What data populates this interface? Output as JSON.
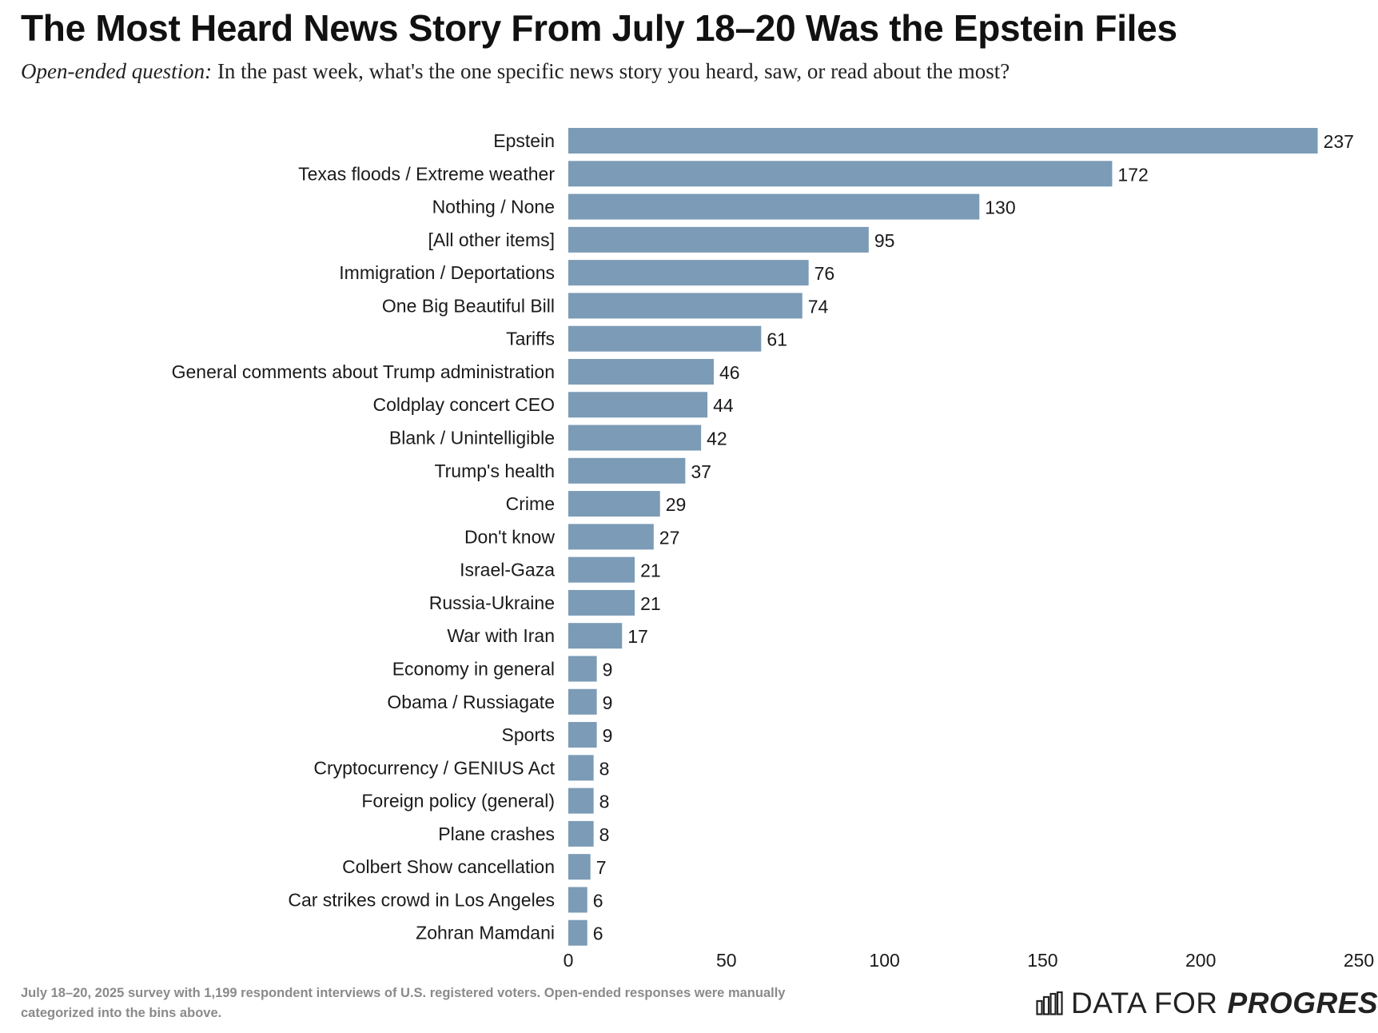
{
  "header": {
    "title": "The Most Heard News Story From July 18–20 Was the Epstein Files",
    "subtitle_lead": "Open-ended question:",
    "subtitle_text": " In the past week, what's the one specific news story you heard, saw, or read about the most?"
  },
  "chart_data": {
    "type": "bar",
    "orientation": "horizontal",
    "categories": [
      "Epstein",
      "Texas floods / Extreme weather",
      "Nothing / None",
      "[All other items]",
      "Immigration / Deportations",
      "One Big Beautiful Bill",
      "Tariffs",
      "General comments about Trump administration",
      "Coldplay concert CEO",
      "Blank / Unintelligible",
      "Trump's health",
      "Crime",
      "Don't know",
      "Israel-Gaza",
      "Russia-Ukraine",
      "War with Iran",
      "Economy in general",
      "Obama / Russiagate",
      "Sports",
      "Cryptocurrency / GENIUS Act",
      "Foreign policy (general)",
      "Plane crashes",
      "Colbert Show cancellation",
      "Car strikes crowd in Los Angeles",
      "Zohran Mamdani"
    ],
    "values": [
      237,
      172,
      130,
      95,
      76,
      74,
      61,
      46,
      44,
      42,
      37,
      29,
      27,
      21,
      21,
      17,
      9,
      9,
      9,
      8,
      8,
      8,
      7,
      6,
      6
    ],
    "xlim": [
      0,
      250
    ],
    "xticks": [
      0,
      50,
      100,
      150,
      200,
      250
    ],
    "xlabel": "",
    "ylabel": "",
    "bar_color": "#7b9bb6",
    "grid": false,
    "data_labels": true
  },
  "footer": {
    "note": "July 18–20, 2025 survey with 1,199 respondent interviews of U.S. registered voters. Open-ended responses were manually categorized into the bins above.",
    "brand_light": "DATA FOR",
    "brand_bold": "PROGRESS",
    "logo_icon": "bar-chart-logo-icon"
  }
}
